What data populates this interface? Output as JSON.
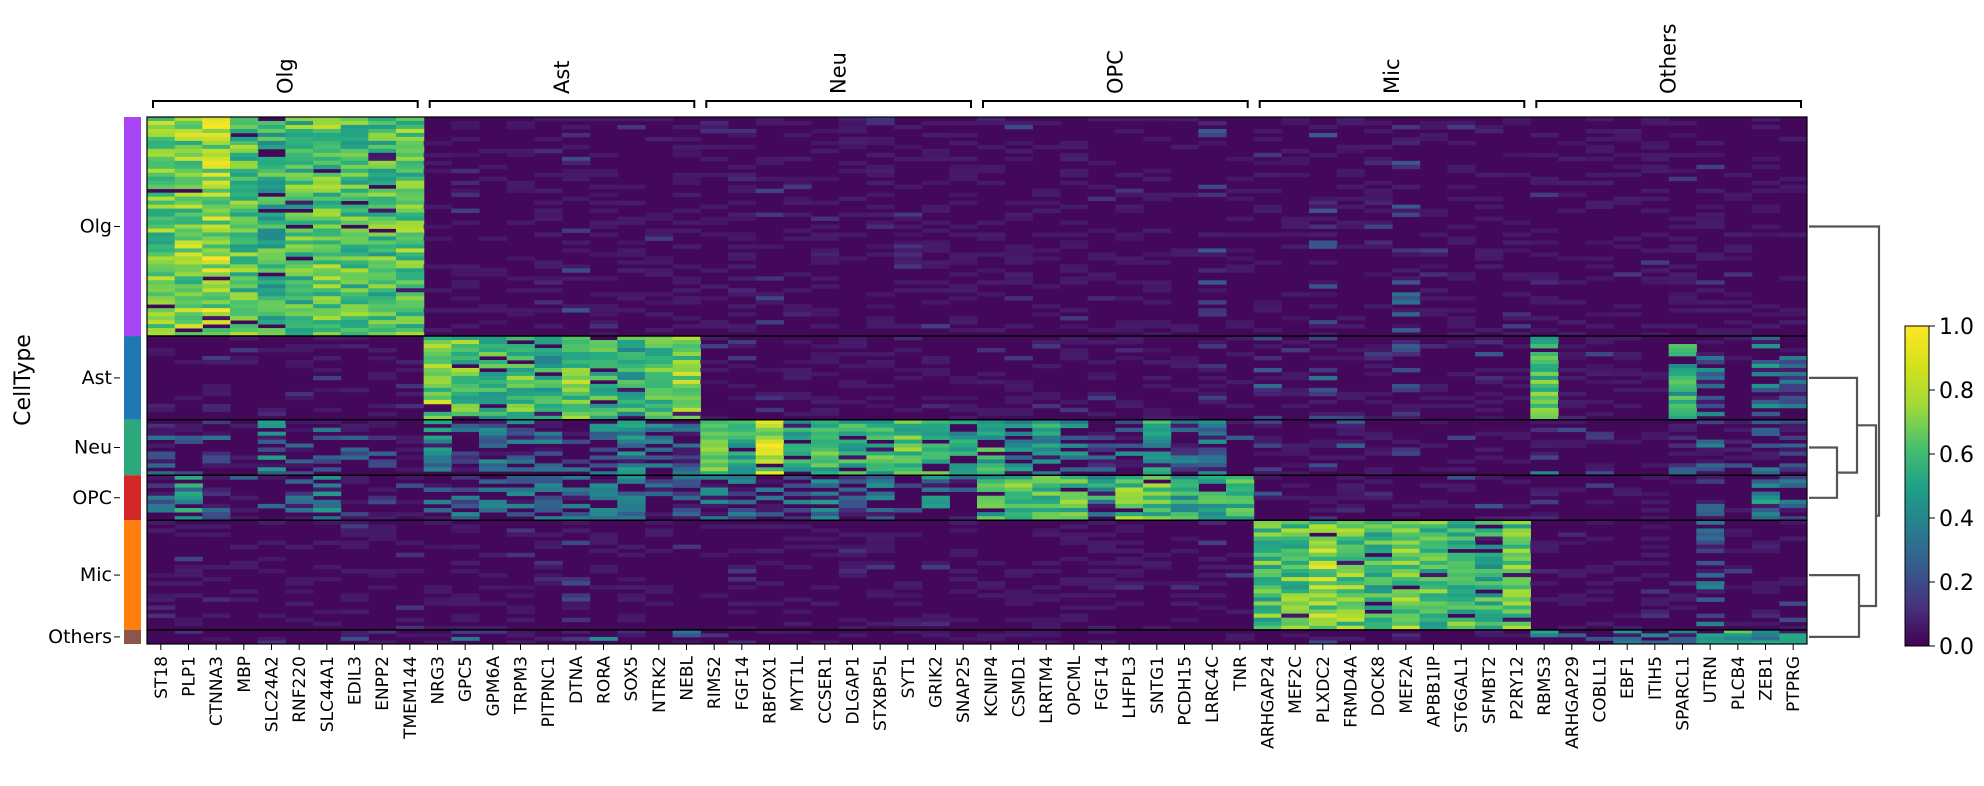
{
  "chart_data": {
    "type": "heatmap",
    "row_axis_label": "CellType",
    "cell_types": [
      {
        "name": "Olg",
        "color": "#a845f5",
        "n": 340
      },
      {
        "name": "Ast",
        "color": "#1f77b4",
        "n": 130
      },
      {
        "name": "Neu",
        "color": "#2ca87a",
        "n": 86
      },
      {
        "name": "OPC",
        "color": "#d62728",
        "n": 70
      },
      {
        "name": "Mic",
        "color": "#ff7f0e",
        "n": 170
      },
      {
        "name": "Others",
        "color": "#8c564b",
        "n": 22
      }
    ],
    "gene_groups": [
      {
        "name": "Olg",
        "genes": [
          "ST18",
          "PLP1",
          "CTNNA3",
          "MBP",
          "SLC24A2",
          "RNF220",
          "SLC44A1",
          "EDIL3",
          "ENPP2",
          "TMEM144"
        ]
      },
      {
        "name": "Ast",
        "genes": [
          "NRG3",
          "GPC5",
          "GPM6A",
          "TRPM3",
          "PITPNC1",
          "DTNA",
          "RORA",
          "SOX5",
          "NTRK2",
          "NEBL"
        ]
      },
      {
        "name": "Neu",
        "genes": [
          "RIMS2",
          "FGF14",
          "RBFOX1",
          "MYT1L",
          "CCSER1",
          "DLGAP1",
          "STXBP5L",
          "SYT1",
          "GRIK2",
          "SNAP25"
        ]
      },
      {
        "name": "OPC",
        "genes": [
          "KCNIP4",
          "CSMD1",
          "LRRTM4",
          "OPCML",
          "FGF14",
          "LHFPL3",
          "SNTG1",
          "PCDH15",
          "LRRC4C",
          "TNR"
        ]
      },
      {
        "name": "Mic",
        "genes": [
          "ARHGAP24",
          "MEF2C",
          "PLXDC2",
          "FRMD4A",
          "DOCK8",
          "MEF2A",
          "APBB1IP",
          "ST6GAL1",
          "SFMBT2",
          "P2RY12"
        ]
      },
      {
        "name": "Others",
        "genes": [
          "RBMS3",
          "ARHGAP29",
          "COBLL1",
          "EBF1",
          "ITIH5",
          "SPARCL1",
          "UTRN",
          "PLCB4",
          "ZEB1",
          "PTPRG"
        ]
      }
    ],
    "mean_expression": [
      [
        0.75,
        0.78,
        0.82,
        0.72,
        0.65,
        0.7,
        0.75,
        0.72,
        0.7,
        0.74,
        0.02,
        0.03,
        0.02,
        0.03,
        0.04,
        0.1,
        0.04,
        0.03,
        0.05,
        0.02,
        0.03,
        0.04,
        0.08,
        0.03,
        0.05,
        0.03,
        0.06,
        0.03,
        0.04,
        0.02,
        0.04,
        0.06,
        0.05,
        0.04,
        0.02,
        0.03,
        0.03,
        0.03,
        0.15,
        0.02,
        0.02,
        0.02,
        0.15,
        0.03,
        0.02,
        0.2,
        0.03,
        0.02,
        0.02,
        0.02,
        0.02,
        0.02,
        0.02,
        0.02,
        0.03,
        0.02,
        0.03,
        0.02,
        0.03,
        0.02
      ],
      [
        0.1,
        0.05,
        0.04,
        0.05,
        0.05,
        0.04,
        0.12,
        0.05,
        0.06,
        0.04,
        0.78,
        0.72,
        0.65,
        0.7,
        0.6,
        0.75,
        0.65,
        0.62,
        0.7,
        0.78,
        0.03,
        0.04,
        0.03,
        0.03,
        0.02,
        0.06,
        0.03,
        0.05,
        0.04,
        0.03,
        0.04,
        0.04,
        0.03,
        0.04,
        0.02,
        0.03,
        0.03,
        0.04,
        0.08,
        0.03,
        0.2,
        0.05,
        0.25,
        0.05,
        0.04,
        0.15,
        0.04,
        0.05,
        0.18,
        0.05,
        0.7,
        0.05,
        0.05,
        0.04,
        0.05,
        0.6,
        0.35,
        0.05,
        0.4,
        0.3
      ],
      [
        0.3,
        0.15,
        0.25,
        0.1,
        0.4,
        0.35,
        0.25,
        0.2,
        0.3,
        0.1,
        0.45,
        0.25,
        0.4,
        0.35,
        0.4,
        0.3,
        0.4,
        0.45,
        0.4,
        0.3,
        0.7,
        0.62,
        0.85,
        0.62,
        0.65,
        0.6,
        0.65,
        0.7,
        0.62,
        0.55,
        0.6,
        0.5,
        0.55,
        0.45,
        0.3,
        0.35,
        0.55,
        0.3,
        0.4,
        0.15,
        0.1,
        0.05,
        0.2,
        0.15,
        0.05,
        0.15,
        0.05,
        0.1,
        0.1,
        0.05,
        0.3,
        0.08,
        0.1,
        0.05,
        0.06,
        0.2,
        0.3,
        0.1,
        0.35,
        0.25
      ],
      [
        0.25,
        0.5,
        0.2,
        0.15,
        0.3,
        0.25,
        0.4,
        0.15,
        0.2,
        0.1,
        0.35,
        0.3,
        0.45,
        0.4,
        0.35,
        0.3,
        0.45,
        0.4,
        0.35,
        0.3,
        0.4,
        0.35,
        0.25,
        0.3,
        0.4,
        0.3,
        0.35,
        0.15,
        0.45,
        0.25,
        0.65,
        0.7,
        0.72,
        0.7,
        0.55,
        0.75,
        0.7,
        0.6,
        0.65,
        0.7,
        0.1,
        0.05,
        0.15,
        0.1,
        0.05,
        0.1,
        0.05,
        0.1,
        0.1,
        0.05,
        0.2,
        0.05,
        0.05,
        0.04,
        0.05,
        0.15,
        0.3,
        0.1,
        0.45,
        0.35
      ],
      [
        0.05,
        0.04,
        0.04,
        0.03,
        0.03,
        0.03,
        0.05,
        0.03,
        0.03,
        0.02,
        0.03,
        0.03,
        0.03,
        0.03,
        0.03,
        0.12,
        0.03,
        0.03,
        0.03,
        0.02,
        0.02,
        0.02,
        0.02,
        0.02,
        0.02,
        0.02,
        0.02,
        0.02,
        0.02,
        0.02,
        0.02,
        0.03,
        0.03,
        0.02,
        0.02,
        0.02,
        0.02,
        0.02,
        0.03,
        0.02,
        0.7,
        0.72,
        0.8,
        0.75,
        0.68,
        0.78,
        0.7,
        0.7,
        0.65,
        0.72,
        0.03,
        0.03,
        0.03,
        0.03,
        0.03,
        0.05,
        0.3,
        0.05,
        0.15,
        0.08
      ],
      [
        0.1,
        0.08,
        0.08,
        0.05,
        0.1,
        0.15,
        0.1,
        0.08,
        0.1,
        0.05,
        0.08,
        0.25,
        0.08,
        0.08,
        0.1,
        0.1,
        0.4,
        0.15,
        0.1,
        0.3,
        0.05,
        0.05,
        0.08,
        0.05,
        0.05,
        0.05,
        0.05,
        0.05,
        0.05,
        0.05,
        0.05,
        0.08,
        0.05,
        0.05,
        0.05,
        0.05,
        0.05,
        0.05,
        0.1,
        0.05,
        0.1,
        0.08,
        0.1,
        0.08,
        0.05,
        0.1,
        0.05,
        0.05,
        0.08,
        0.1,
        0.55,
        0.45,
        0.4,
        0.35,
        0.45,
        0.4,
        0.55,
        0.6,
        0.5,
        0.55
      ]
    ],
    "colorbar": {
      "colormap": "viridis",
      "range": [
        0.0,
        1.0
      ],
      "ticks": [
        "0.0",
        "0.2",
        "0.4",
        "0.6",
        "0.8",
        "1.0"
      ]
    },
    "dendrogram_order": [
      "Olg",
      "Ast",
      "Neu",
      "OPC",
      "Mic",
      "Others"
    ]
  }
}
